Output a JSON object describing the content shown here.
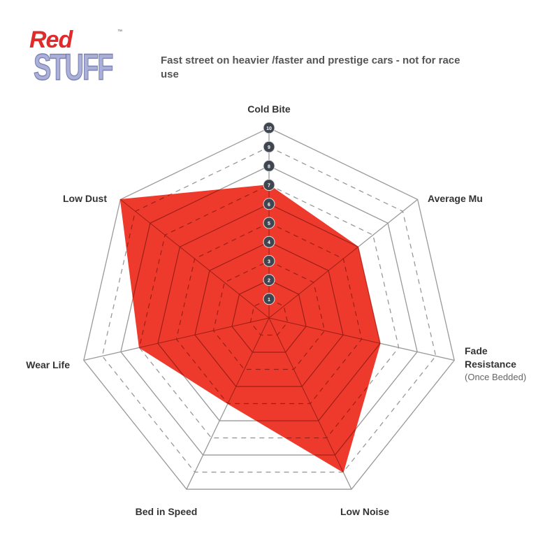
{
  "logo": {
    "line1": "Red",
    "line2": "STUFF",
    "tm": "™"
  },
  "chart_data": {
    "type": "radar",
    "title": "Fast street on heavier /faster and prestige cars - not for race use",
    "axes": [
      "Cold Bite",
      "Average Mu",
      "Fade Resistance",
      "Low Noise",
      "Bed in Speed",
      "Wear Life",
      "Low Dust"
    ],
    "axis_sublabels": {
      "Fade Resistance": "(Once Bedded)"
    },
    "values": [
      7,
      6,
      6,
      9,
      5,
      7,
      10
    ],
    "range": [
      0,
      10
    ],
    "scale_ticks": [
      "1",
      "2",
      "3",
      "4",
      "5",
      "6",
      "7",
      "8",
      "9",
      "10"
    ],
    "fill_color": "#ee3a2c",
    "grid": true
  }
}
